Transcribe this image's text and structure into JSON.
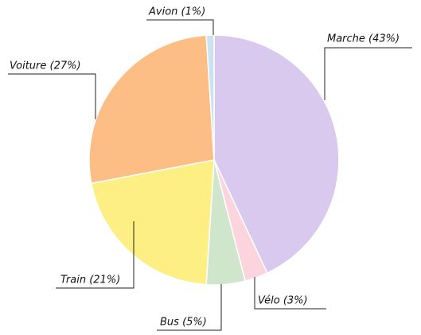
{
  "chart_data": {
    "type": "pie",
    "values": [
      43,
      3,
      5,
      21,
      27,
      1
    ],
    "value_labels": [
      "Marche (43%)",
      "Vélo (3%)",
      "Bus (5%)",
      "Train (21%)",
      "Voiture (27%)",
      "Avion (1%)"
    ],
    "colors": [
      "#d9c9ee",
      "#fcd4dd",
      "#cfe5cc",
      "#fdef84",
      "#fdbe86",
      "#cde2f0"
    ]
  }
}
